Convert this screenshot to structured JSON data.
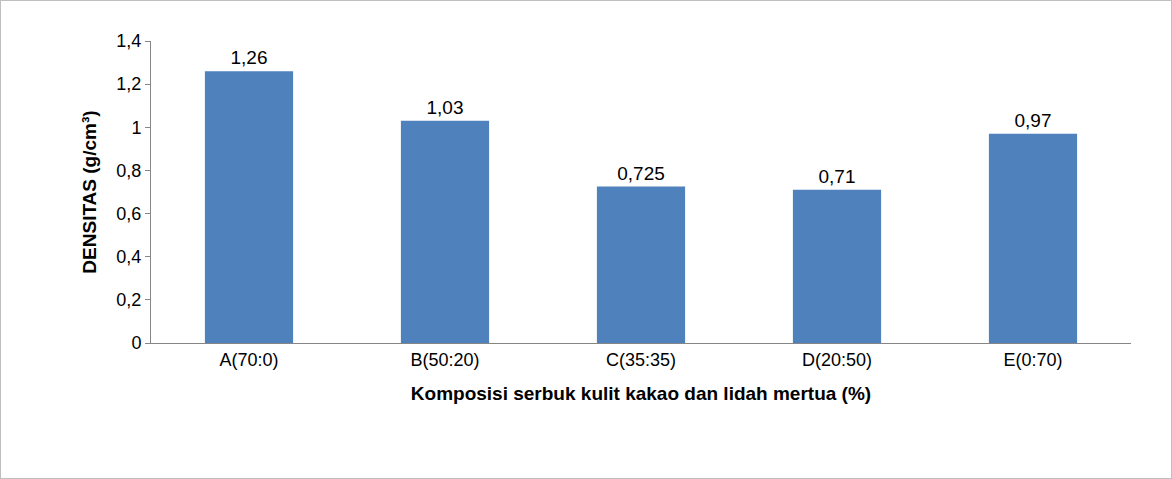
{
  "chart_data": {
    "type": "bar",
    "x_label": "Komposisi serbuk kulit kakao dan lidah mertua (%)",
    "y_label": "DENSITAS (g/cm³)",
    "categories": [
      "A(70:0)",
      "B(50:20)",
      "C(35:35)",
      "D(20:50)",
      "E(0:70)"
    ],
    "values": [
      1.26,
      1.03,
      0.725,
      0.71,
      0.97
    ],
    "value_labels": [
      "1,26",
      "1,03",
      "0,725",
      "0,71",
      "0,97"
    ],
    "color": "#4f81bd",
    "ylim": [
      0,
      1.4
    ],
    "yticks": [
      0,
      {
        "value": 0.2,
        "label": "0,2"
      },
      {
        "value": 0.4,
        "label": "0,4"
      },
      {
        "value": 0.6,
        "label": "0,6"
      },
      {
        "value": 0.8,
        "label": "0,8"
      },
      1,
      {
        "value": 1.2,
        "label": "1,2"
      },
      {
        "value": 1.4,
        "label": "1,4"
      }
    ],
    "grid": false,
    "data_labels": true
  }
}
